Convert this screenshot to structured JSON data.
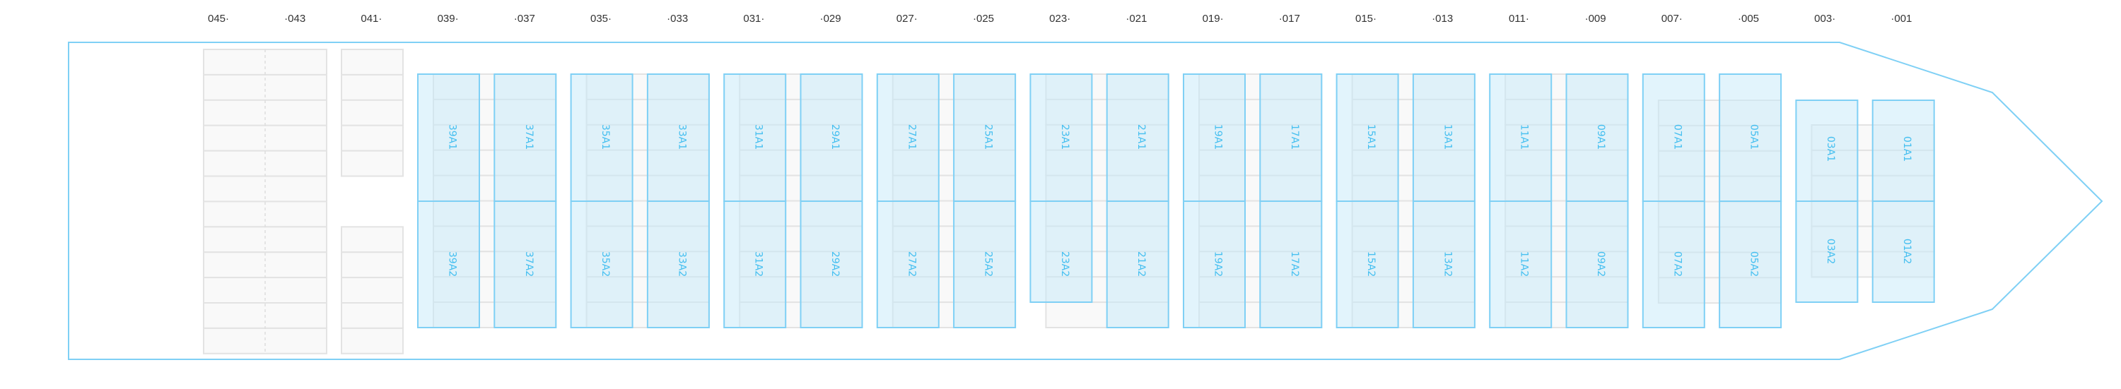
{
  "bay_numbers": [
    "045·",
    "·043",
    "041·",
    "039·",
    "·037",
    "035·",
    "·033",
    "031·",
    "·029",
    "027·",
    "·025",
    "023·",
    "·021",
    "019·",
    "·017",
    "015·",
    "·013",
    "011·",
    "·009",
    "007·",
    "·005",
    "003·",
    "·001"
  ],
  "bays": [
    {
      "a1": "39A1",
      "a2": "39A2"
    },
    {
      "a1": "37A1",
      "a2": "37A2"
    },
    {
      "a1": "35A1",
      "a2": "35A2"
    },
    {
      "a1": "33A1",
      "a2": "33A2"
    },
    {
      "a1": "31A1",
      "a2": "31A2"
    },
    {
      "a1": "29A1",
      "a2": "29A2"
    },
    {
      "a1": "27A1",
      "a2": "27A2"
    },
    {
      "a1": "25A1",
      "a2": "25A2"
    },
    {
      "a1": "23A1",
      "a2": "23A2"
    },
    {
      "a1": "21A1",
      "a2": "21A2"
    },
    {
      "a1": "19A1",
      "a2": "19A2"
    },
    {
      "a1": "17A1",
      "a2": "17A2"
    },
    {
      "a1": "15A1",
      "a2": "15A2"
    },
    {
      "a1": "13A1",
      "a2": "13A2"
    },
    {
      "a1": "11A1",
      "a2": "11A2"
    },
    {
      "a1": "09A1",
      "a2": "09A2"
    },
    {
      "a1": "07A1",
      "a2": "07A2"
    },
    {
      "a1": "05A1",
      "a2": "05A2"
    },
    {
      "a1": "03A1",
      "a2": "03A2"
    },
    {
      "a1": "01A1",
      "a2": "01A2"
    }
  ],
  "colors": {
    "hull": "#7fd0f5",
    "slot_fill": "#e1f3fb",
    "slot_stroke": "#7fd0f5",
    "slot_text": "#45bff0",
    "grid_fill": "#f9f9f9",
    "grid_stroke": "#e3e3e3"
  }
}
